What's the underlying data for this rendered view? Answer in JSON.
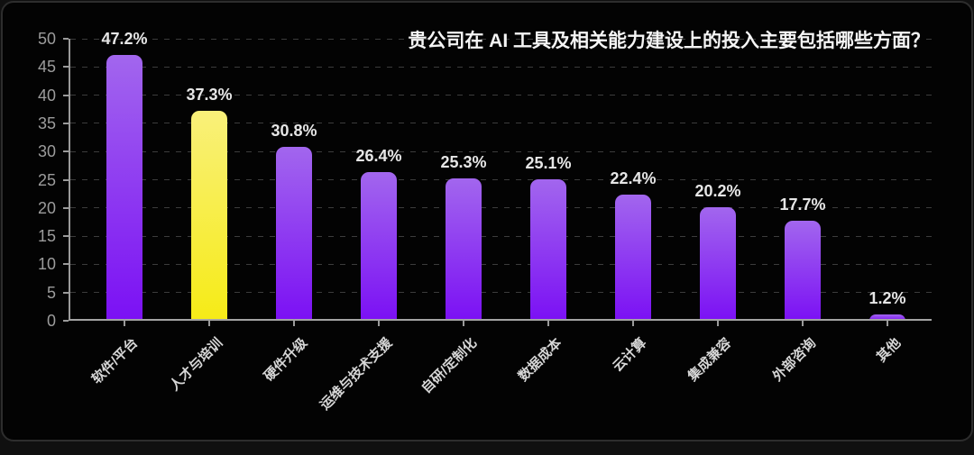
{
  "chart_data": {
    "type": "bar",
    "title": "贵公司在 AI 工具及相关能力建设上的投入主要包括哪些方面？",
    "categories": [
      "软件/平台",
      "人才与培训",
      "硬件升级",
      "运维与技术支援",
      "自研/定制化",
      "数据成本",
      "云计算",
      "集成兼容",
      "外部咨询",
      "其他"
    ],
    "values": [
      47.2,
      37.3,
      30.8,
      26.4,
      25.3,
      25.1,
      22.4,
      20.2,
      17.7,
      1.2
    ],
    "value_labels": [
      "47.2%",
      "37.3%",
      "30.8%",
      "26.4%",
      "25.3%",
      "25.1%",
      "22.4%",
      "20.2%",
      "17.7%",
      "1.2%"
    ],
    "xlabel": "",
    "ylabel": "",
    "ylim": [
      0,
      50
    ],
    "yticks": [
      0,
      5,
      10,
      15,
      20,
      25,
      30,
      35,
      40,
      45,
      50
    ],
    "grid": "horizontal-dashed",
    "legend": "none",
    "highlight_index": 1,
    "colors": {
      "bar_gradient_top": "#a266ee",
      "bar_gradient_bottom": "#7b10f4",
      "highlight_gradient_top": "#f9f07a",
      "highlight_gradient_bottom": "#f6eb16",
      "background": "#030303",
      "gridline": "#3c3c3c",
      "axis": "#9a9a9a",
      "title_text": "#f5f5f5",
      "tick_text": "#9c9c9c",
      "category_text": "#d6d6d6",
      "value_text": "#e6e6e6"
    }
  }
}
